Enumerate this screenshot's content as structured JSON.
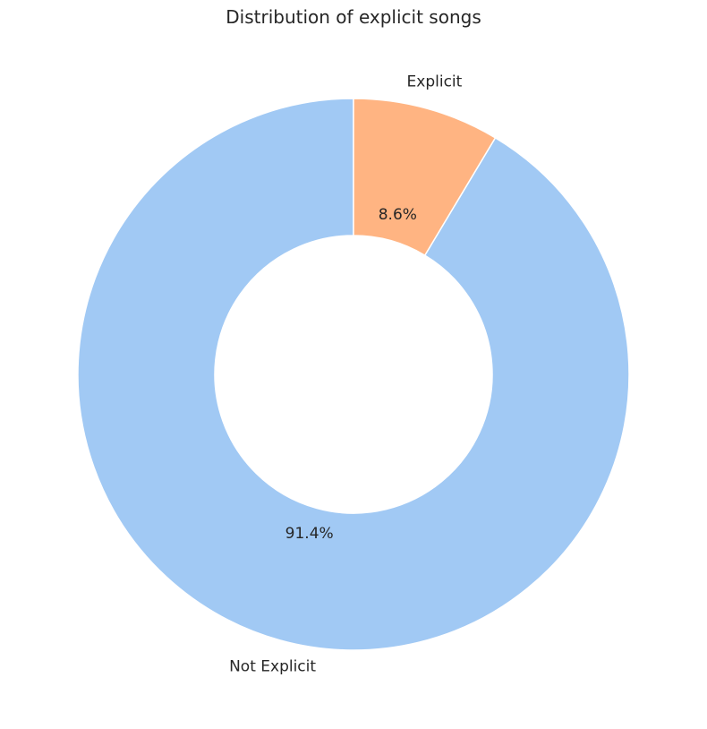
{
  "chart_data": {
    "type": "pie",
    "title": "Distribution of explicit songs",
    "donut": true,
    "start_angle_deg": 90,
    "direction": "counterclockwise",
    "slices": [
      {
        "label": "Not Explicit",
        "value": 91.4,
        "pct_label": "91.4%",
        "color": "#a1c9f4"
      },
      {
        "label": "Explicit",
        "value": 8.6,
        "pct_label": "8.6%",
        "color": "#ffb482"
      }
    ],
    "edge_color": "#ffffff"
  }
}
